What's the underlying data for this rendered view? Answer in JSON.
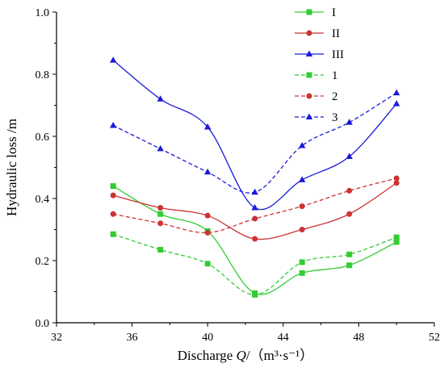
{
  "chart_data": {
    "type": "line",
    "xlabel_prefix": "Discharge ",
    "xlabel_var": "Q",
    "xlabel_suffix": "/（m³·s⁻¹）",
    "ylabel": "Hydraulic loss /m",
    "xlim": [
      32,
      52
    ],
    "ylim": [
      0.0,
      1.0
    ],
    "xticks": [
      32,
      36,
      40,
      44,
      48,
      52
    ],
    "xtick_labels": [
      "32",
      "36",
      "40",
      "44",
      "48",
      "52"
    ],
    "yticks": [
      0.0,
      0.2,
      0.4,
      0.6,
      0.8,
      1.0
    ],
    "ytick_labels": [
      "0.0",
      "0.2",
      "0.4",
      "0.6",
      "0.8",
      "1.0"
    ],
    "grid": false,
    "legend_position": "top-right",
    "x": [
      35,
      37.5,
      40,
      42.5,
      45,
      47.5,
      50
    ],
    "series": [
      {
        "name": "I",
        "line": "solid",
        "marker": "square",
        "color": "#33cc33",
        "values": [
          0.44,
          0.35,
          0.295,
          0.095,
          0.16,
          0.185,
          0.26
        ]
      },
      {
        "name": "II",
        "line": "solid",
        "marker": "circle",
        "color": "#cc3333",
        "values": [
          0.41,
          0.37,
          0.345,
          0.27,
          0.3,
          0.35,
          0.45
        ]
      },
      {
        "name": "III",
        "line": "solid",
        "marker": "triangle",
        "color": "#1a1ad9",
        "values": [
          0.845,
          0.72,
          0.63,
          0.37,
          0.46,
          0.535,
          0.705
        ]
      },
      {
        "name": "1",
        "line": "dashed",
        "marker": "square",
        "color": "#33cc33",
        "values": [
          0.285,
          0.235,
          0.19,
          0.09,
          0.195,
          0.22,
          0.275
        ]
      },
      {
        "name": "2",
        "line": "dashed",
        "marker": "circle",
        "color": "#cc3333",
        "values": [
          0.35,
          0.32,
          0.29,
          0.335,
          0.375,
          0.425,
          0.465
        ]
      },
      {
        "name": "3",
        "line": "dashed",
        "marker": "triangle",
        "color": "#1a1ad9",
        "values": [
          0.635,
          0.56,
          0.485,
          0.42,
          0.57,
          0.645,
          0.74
        ]
      }
    ]
  }
}
